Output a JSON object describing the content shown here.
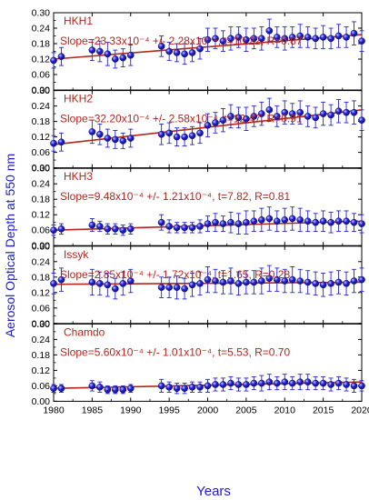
{
  "chart_data": {
    "type": "scatter",
    "ylabel": "Aerosol Optical Depth at 550 nm",
    "xlabel": "Years",
    "xlim": [
      1980,
      2020
    ],
    "ylim": [
      0,
      0.3
    ],
    "x_ticks": [
      "1980",
      "1985",
      "1990",
      "1995",
      "2000",
      "2005",
      "2010",
      "2015",
      "2020"
    ],
    "y_ticks": [
      "0.00",
      "0.06",
      "0.12",
      "0.18",
      "0.24",
      "0.30"
    ],
    "colors": {
      "marker": "#2323d6",
      "marker_edge": "#10107a",
      "fit_line": "#b3261e",
      "label_text": "#b3261e",
      "axis_label": "#1a1ad6"
    },
    "panels": [
      {
        "name": "HKH1",
        "annotation": "Slope=23.33x10⁻⁴ +/- 2.28x10⁻⁴, t=10.22, R=0.87",
        "fit": [
          0.12,
          0.215
        ],
        "points": [
          [
            1980,
            0.115,
            0.03
          ],
          [
            1981,
            0.13,
            0.035
          ],
          [
            1985,
            0.155,
            0.04
          ],
          [
            1986,
            0.15,
            0.04
          ],
          [
            1987,
            0.14,
            0.045
          ],
          [
            1988,
            0.12,
            0.035
          ],
          [
            1989,
            0.125,
            0.035
          ],
          [
            1990,
            0.135,
            0.04
          ],
          [
            1994,
            0.17,
            0.04
          ],
          [
            1995,
            0.15,
            0.035
          ],
          [
            1996,
            0.145,
            0.035
          ],
          [
            1997,
            0.14,
            0.04
          ],
          [
            1998,
            0.145,
            0.035
          ],
          [
            1999,
            0.16,
            0.04
          ],
          [
            2000,
            0.195,
            0.045
          ],
          [
            2001,
            0.2,
            0.04
          ],
          [
            2002,
            0.19,
            0.04
          ],
          [
            2003,
            0.2,
            0.045
          ],
          [
            2004,
            0.205,
            0.04
          ],
          [
            2005,
            0.195,
            0.045
          ],
          [
            2006,
            0.2,
            0.04
          ],
          [
            2007,
            0.2,
            0.045
          ],
          [
            2008,
            0.23,
            0.045
          ],
          [
            2009,
            0.205,
            0.04
          ],
          [
            2010,
            0.2,
            0.045
          ],
          [
            2011,
            0.205,
            0.04
          ],
          [
            2012,
            0.21,
            0.045
          ],
          [
            2013,
            0.205,
            0.04
          ],
          [
            2014,
            0.2,
            0.04
          ],
          [
            2015,
            0.205,
            0.045
          ],
          [
            2016,
            0.2,
            0.04
          ],
          [
            2017,
            0.21,
            0.045
          ],
          [
            2018,
            0.205,
            0.04
          ],
          [
            2019,
            0.22,
            0.045
          ],
          [
            2020,
            0.19,
            0.04
          ]
        ]
      },
      {
        "name": "HKH2",
        "annotation": "Slope=32.20x10⁻⁴ +/- 2.58x10⁻⁴, t=12.47, R=0.91",
        "fit": [
          0.09,
          0.225
        ],
        "points": [
          [
            1980,
            0.095,
            0.03
          ],
          [
            1981,
            0.1,
            0.035
          ],
          [
            1985,
            0.14,
            0.045
          ],
          [
            1986,
            0.13,
            0.04
          ],
          [
            1987,
            0.115,
            0.035
          ],
          [
            1988,
            0.11,
            0.035
          ],
          [
            1989,
            0.105,
            0.03
          ],
          [
            1990,
            0.115,
            0.035
          ],
          [
            1994,
            0.13,
            0.04
          ],
          [
            1995,
            0.135,
            0.04
          ],
          [
            1996,
            0.12,
            0.035
          ],
          [
            1997,
            0.12,
            0.035
          ],
          [
            1998,
            0.125,
            0.035
          ],
          [
            1999,
            0.135,
            0.04
          ],
          [
            2000,
            0.165,
            0.045
          ],
          [
            2001,
            0.175,
            0.04
          ],
          [
            2002,
            0.185,
            0.045
          ],
          [
            2003,
            0.2,
            0.045
          ],
          [
            2004,
            0.195,
            0.04
          ],
          [
            2005,
            0.19,
            0.045
          ],
          [
            2006,
            0.2,
            0.04
          ],
          [
            2007,
            0.21,
            0.045
          ],
          [
            2008,
            0.225,
            0.045
          ],
          [
            2009,
            0.2,
            0.04
          ],
          [
            2010,
            0.215,
            0.045
          ],
          [
            2011,
            0.21,
            0.04
          ],
          [
            2012,
            0.215,
            0.045
          ],
          [
            2013,
            0.2,
            0.04
          ],
          [
            2014,
            0.195,
            0.04
          ],
          [
            2015,
            0.21,
            0.045
          ],
          [
            2016,
            0.205,
            0.04
          ],
          [
            2017,
            0.22,
            0.045
          ],
          [
            2018,
            0.215,
            0.04
          ],
          [
            2019,
            0.215,
            0.045
          ],
          [
            2020,
            0.185,
            0.04
          ]
        ]
      },
      {
        "name": "HKH3",
        "annotation": "Slope=9.48x10⁻⁴ +/- 1.21x10⁻⁴, t=7.82, R=0.81",
        "fit": [
          0.06,
          0.095
        ],
        "points": [
          [
            1980,
            0.06,
            0.02
          ],
          [
            1981,
            0.065,
            0.02
          ],
          [
            1985,
            0.08,
            0.025
          ],
          [
            1986,
            0.075,
            0.02
          ],
          [
            1987,
            0.065,
            0.02
          ],
          [
            1988,
            0.065,
            0.02
          ],
          [
            1989,
            0.06,
            0.02
          ],
          [
            1990,
            0.065,
            0.02
          ],
          [
            1994,
            0.09,
            0.03
          ],
          [
            1995,
            0.075,
            0.025
          ],
          [
            1996,
            0.07,
            0.02
          ],
          [
            1997,
            0.07,
            0.02
          ],
          [
            1998,
            0.07,
            0.02
          ],
          [
            1999,
            0.075,
            0.025
          ],
          [
            2000,
            0.085,
            0.03
          ],
          [
            2001,
            0.09,
            0.035
          ],
          [
            2002,
            0.085,
            0.03
          ],
          [
            2003,
            0.09,
            0.04
          ],
          [
            2004,
            0.085,
            0.04
          ],
          [
            2005,
            0.09,
            0.045
          ],
          [
            2006,
            0.095,
            0.04
          ],
          [
            2007,
            0.1,
            0.045
          ],
          [
            2008,
            0.105,
            0.045
          ],
          [
            2009,
            0.095,
            0.04
          ],
          [
            2010,
            0.1,
            0.045
          ],
          [
            2011,
            0.105,
            0.045
          ],
          [
            2012,
            0.1,
            0.045
          ],
          [
            2013,
            0.095,
            0.04
          ],
          [
            2014,
            0.09,
            0.035
          ],
          [
            2015,
            0.095,
            0.04
          ],
          [
            2016,
            0.09,
            0.04
          ],
          [
            2017,
            0.095,
            0.04
          ],
          [
            2018,
            0.095,
            0.04
          ],
          [
            2019,
            0.09,
            0.035
          ],
          [
            2020,
            0.085,
            0.035
          ]
        ]
      },
      {
        "name": "Issyk",
        "annotation": "Slope=2.85x10⁻⁴ +/- 1.72x10⁻⁴, t=1.65, R=0.28",
        "fit": [
          0.152,
          0.16
        ],
        "points": [
          [
            1980,
            0.155,
            0.04
          ],
          [
            1981,
            0.17,
            0.045
          ],
          [
            1985,
            0.16,
            0.05
          ],
          [
            1986,
            0.155,
            0.045
          ],
          [
            1987,
            0.15,
            0.045
          ],
          [
            1988,
            0.135,
            0.04
          ],
          [
            1989,
            0.155,
            0.045
          ],
          [
            1990,
            0.165,
            0.045
          ],
          [
            1994,
            0.14,
            0.04
          ],
          [
            1995,
            0.14,
            0.04
          ],
          [
            1996,
            0.14,
            0.045
          ],
          [
            1997,
            0.135,
            0.04
          ],
          [
            1998,
            0.15,
            0.045
          ],
          [
            1999,
            0.155,
            0.045
          ],
          [
            2000,
            0.17,
            0.05
          ],
          [
            2001,
            0.165,
            0.045
          ],
          [
            2002,
            0.16,
            0.045
          ],
          [
            2003,
            0.165,
            0.05
          ],
          [
            2004,
            0.155,
            0.045
          ],
          [
            2005,
            0.16,
            0.045
          ],
          [
            2006,
            0.16,
            0.045
          ],
          [
            2007,
            0.165,
            0.05
          ],
          [
            2008,
            0.175,
            0.05
          ],
          [
            2009,
            0.17,
            0.045
          ],
          [
            2010,
            0.165,
            0.045
          ],
          [
            2011,
            0.17,
            0.05
          ],
          [
            2012,
            0.165,
            0.045
          ],
          [
            2013,
            0.16,
            0.045
          ],
          [
            2014,
            0.155,
            0.045
          ],
          [
            2015,
            0.15,
            0.045
          ],
          [
            2016,
            0.155,
            0.045
          ],
          [
            2017,
            0.16,
            0.045
          ],
          [
            2018,
            0.155,
            0.045
          ],
          [
            2019,
            0.165,
            0.045
          ],
          [
            2020,
            0.17,
            0.045
          ]
        ]
      },
      {
        "name": "Chamdo",
        "annotation": "Slope=5.60x10⁻⁴ +/- 1.01x10⁻⁴, t=5.53, R=0.70",
        "fit": [
          0.05,
          0.075
        ],
        "points": [
          [
            1980,
            0.05,
            0.015
          ],
          [
            1981,
            0.05,
            0.015
          ],
          [
            1985,
            0.06,
            0.02
          ],
          [
            1986,
            0.055,
            0.02
          ],
          [
            1987,
            0.045,
            0.015
          ],
          [
            1988,
            0.045,
            0.015
          ],
          [
            1989,
            0.045,
            0.015
          ],
          [
            1990,
            0.05,
            0.015
          ],
          [
            1994,
            0.06,
            0.025
          ],
          [
            1995,
            0.055,
            0.02
          ],
          [
            1996,
            0.05,
            0.02
          ],
          [
            1997,
            0.05,
            0.02
          ],
          [
            1998,
            0.055,
            0.02
          ],
          [
            1999,
            0.055,
            0.02
          ],
          [
            2000,
            0.06,
            0.025
          ],
          [
            2001,
            0.065,
            0.025
          ],
          [
            2002,
            0.065,
            0.025
          ],
          [
            2003,
            0.07,
            0.025
          ],
          [
            2004,
            0.065,
            0.025
          ],
          [
            2005,
            0.065,
            0.025
          ],
          [
            2006,
            0.07,
            0.025
          ],
          [
            2007,
            0.07,
            0.03
          ],
          [
            2008,
            0.075,
            0.03
          ],
          [
            2009,
            0.07,
            0.025
          ],
          [
            2010,
            0.075,
            0.03
          ],
          [
            2011,
            0.07,
            0.025
          ],
          [
            2012,
            0.075,
            0.03
          ],
          [
            2013,
            0.075,
            0.03
          ],
          [
            2014,
            0.07,
            0.025
          ],
          [
            2015,
            0.07,
            0.025
          ],
          [
            2016,
            0.065,
            0.025
          ],
          [
            2017,
            0.07,
            0.025
          ],
          [
            2018,
            0.065,
            0.025
          ],
          [
            2019,
            0.06,
            0.025
          ],
          [
            2020,
            0.06,
            0.02
          ]
        ]
      }
    ]
  }
}
